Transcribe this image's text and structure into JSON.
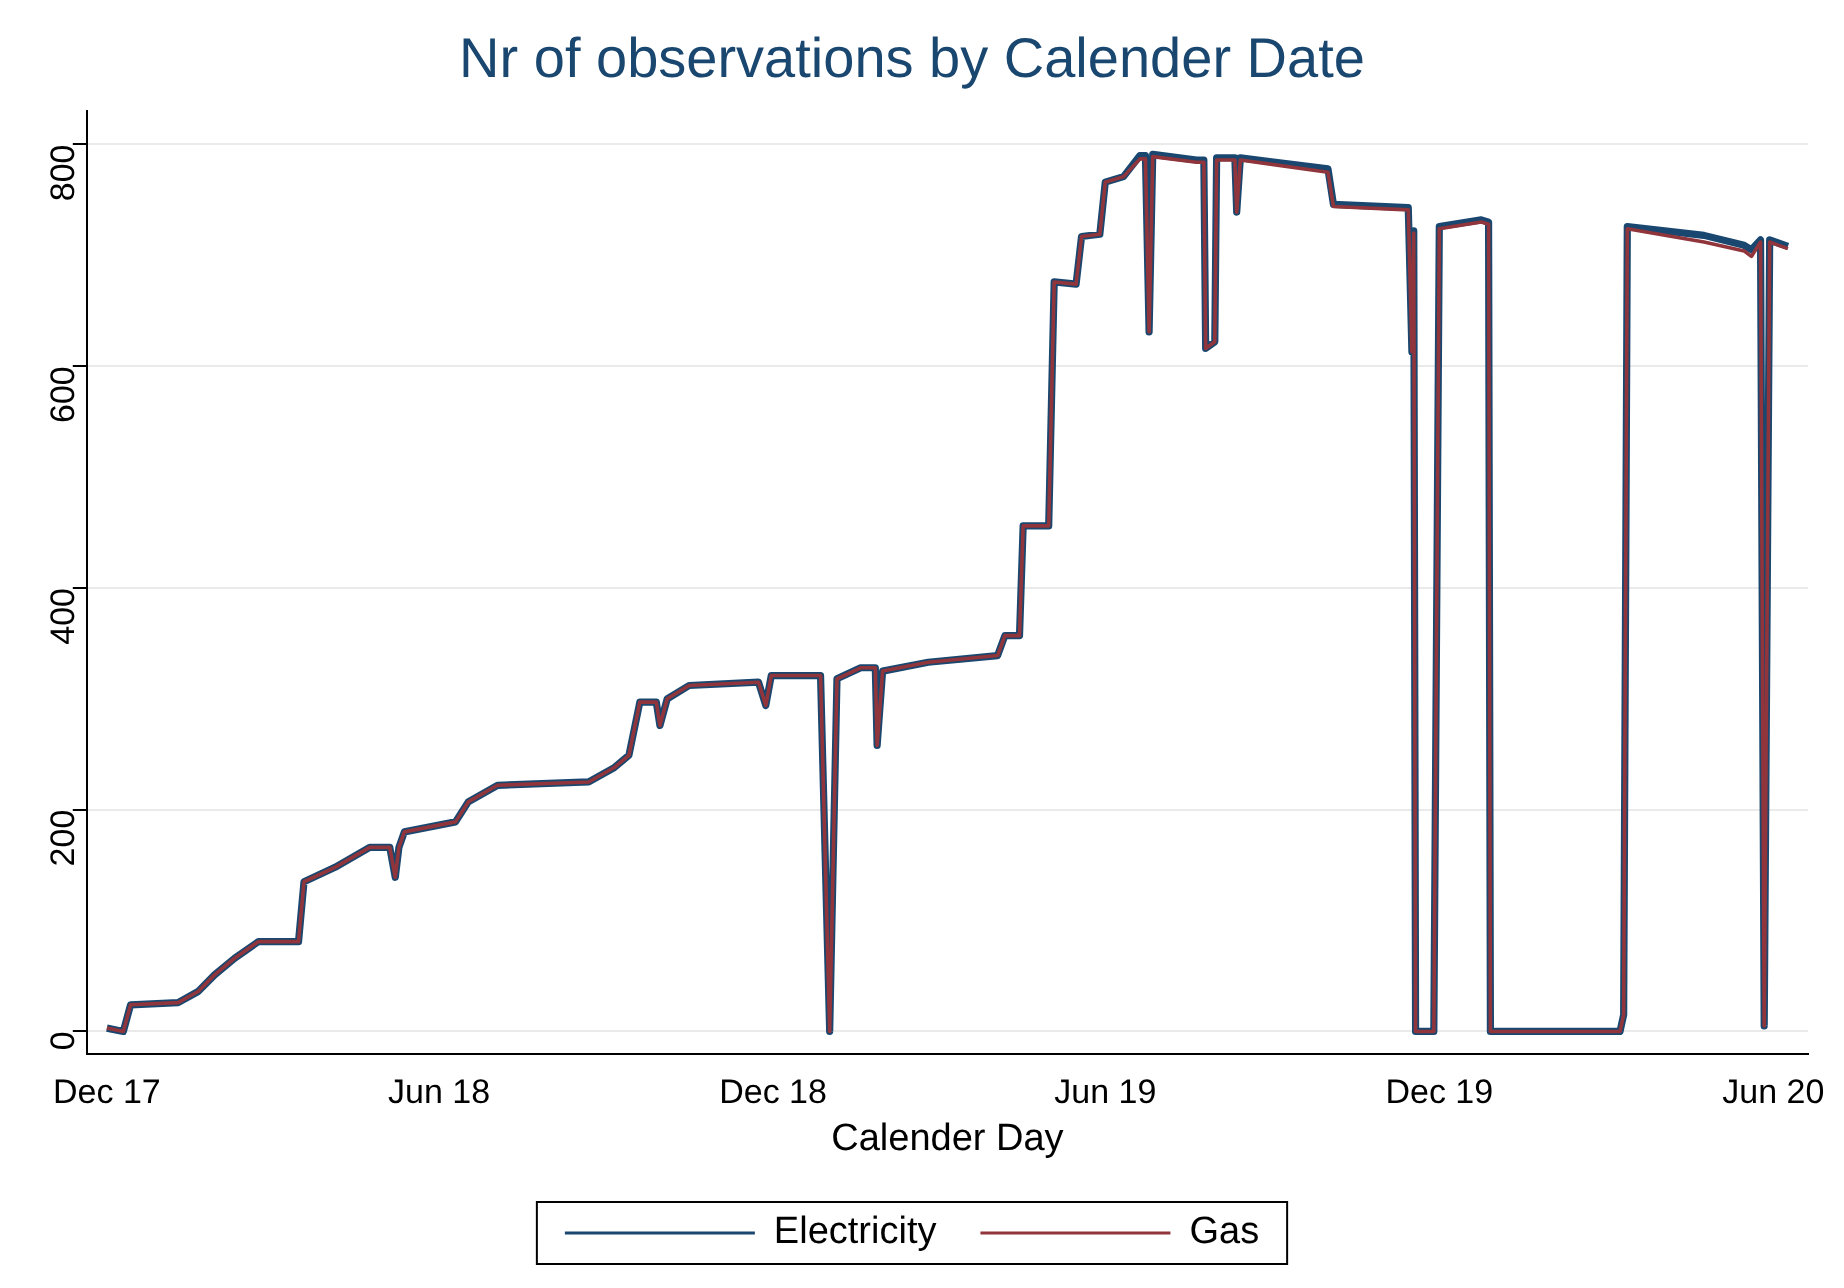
{
  "chart_data": {
    "type": "line",
    "title": "Nr of observations by Calender Date",
    "xlabel": "Calender Day",
    "x": [
      "2017-12-01",
      "2017-12-10",
      "2017-12-14",
      "2018-01-09",
      "2018-01-20",
      "2018-01-29",
      "2018-02-09",
      "2018-02-22",
      "2018-03-16",
      "2018-03-19",
      "2018-04-05",
      "2018-04-24",
      "2018-05-05",
      "2018-05-08",
      "2018-05-10",
      "2018-05-13",
      "2018-06-10",
      "2018-06-17",
      "2018-07-03",
      "2018-08-22",
      "2018-09-05",
      "2018-09-13",
      "2018-09-19",
      "2018-09-28",
      "2018-09-30",
      "2018-10-04",
      "2018-10-16",
      "2018-11-23",
      "2018-11-27",
      "2018-11-30",
      "2018-12-27",
      "2019-01-01",
      "2019-01-05",
      "2019-01-18",
      "2019-01-26",
      "2019-01-27",
      "2019-01-30",
      "2019-02-24",
      "2019-04-03",
      "2019-04-07",
      "2019-04-15",
      "2019-04-17",
      "2019-05-01",
      "2019-05-04",
      "2019-05-16",
      "2019-05-19",
      "2019-05-29",
      "2019-06-01",
      "2019-06-11",
      "2019-06-20",
      "2019-06-23",
      "2019-06-25",
      "2019-06-27",
      "2019-07-21",
      "2019-07-25",
      "2019-07-26",
      "2019-07-31",
      "2019-08-01",
      "2019-08-11",
      "2019-08-12",
      "2019-08-14",
      "2019-10-01",
      "2019-10-04",
      "2019-11-14",
      "2019-11-16",
      "2019-11-17",
      "2019-11-18",
      "2019-11-28",
      "2019-12-01",
      "2019-12-24",
      "2019-12-28",
      "2019-12-29",
      "2020-03-09",
      "2020-03-11",
      "2020-03-13",
      "2020-04-24",
      "2020-05-16",
      "2020-05-20",
      "2020-05-25",
      "2020-05-27",
      "2020-05-30",
      "2020-06-09"
    ],
    "series": [
      {
        "name": "Electricity",
        "color": "#1a476f",
        "values": [
          3,
          0,
          24,
          26,
          36,
          51,
          66,
          81,
          81,
          135,
          148,
          166,
          166,
          139,
          166,
          180,
          189,
          207,
          222,
          225,
          238,
          249,
          297,
          297,
          276,
          300,
          312,
          315,
          294,
          321,
          321,
          0,
          318,
          328,
          328,
          258,
          325,
          333,
          339,
          357,
          357,
          456,
          456,
          676,
          674,
          717,
          719,
          766,
          771,
          790,
          790,
          631,
          791,
          786,
          786,
          616,
          622,
          788,
          788,
          739,
          788,
          778,
          746,
          743,
          613,
          722,
          0,
          0,
          726,
          732,
          730,
          0,
          0,
          15,
          726,
          718,
          709,
          705,
          714,
          5,
          714,
          708
        ]
      },
      {
        "name": "Gas",
        "color": "#90353b",
        "values": [
          3,
          0,
          24,
          26,
          36,
          51,
          66,
          81,
          81,
          135,
          148,
          166,
          166,
          139,
          166,
          180,
          189,
          207,
          222,
          225,
          238,
          249,
          297,
          297,
          276,
          300,
          312,
          315,
          294,
          321,
          321,
          0,
          318,
          328,
          328,
          258,
          325,
          333,
          339,
          357,
          357,
          456,
          456,
          676,
          674,
          717,
          719,
          766,
          771,
          787,
          787,
          631,
          789,
          784,
          784,
          616,
          622,
          786,
          786,
          739,
          786,
          775,
          744,
          741,
          613,
          720,
          0,
          0,
          724,
          730,
          728,
          0,
          0,
          15,
          724,
          712,
          704,
          699,
          712,
          5,
          712,
          706
        ]
      }
    ],
    "xlim": [
      "2017-11-20",
      "2020-06-20"
    ],
    "xticks": [
      {
        "value": "2017-12-01",
        "label": "Dec 17"
      },
      {
        "value": "2018-06-01",
        "label": "Jun 18"
      },
      {
        "value": "2018-12-01",
        "label": "Dec 18"
      },
      {
        "value": "2019-06-01",
        "label": "Jun 19"
      },
      {
        "value": "2019-12-01",
        "label": "Dec 19"
      },
      {
        "value": "2020-06-01",
        "label": "Jun 20"
      }
    ],
    "ylim": [
      -20,
      830
    ],
    "yticks": [
      0,
      200,
      400,
      600,
      800
    ],
    "grid": "y",
    "legend": "bottom",
    "marker": "none",
    "line_style": "solid"
  }
}
